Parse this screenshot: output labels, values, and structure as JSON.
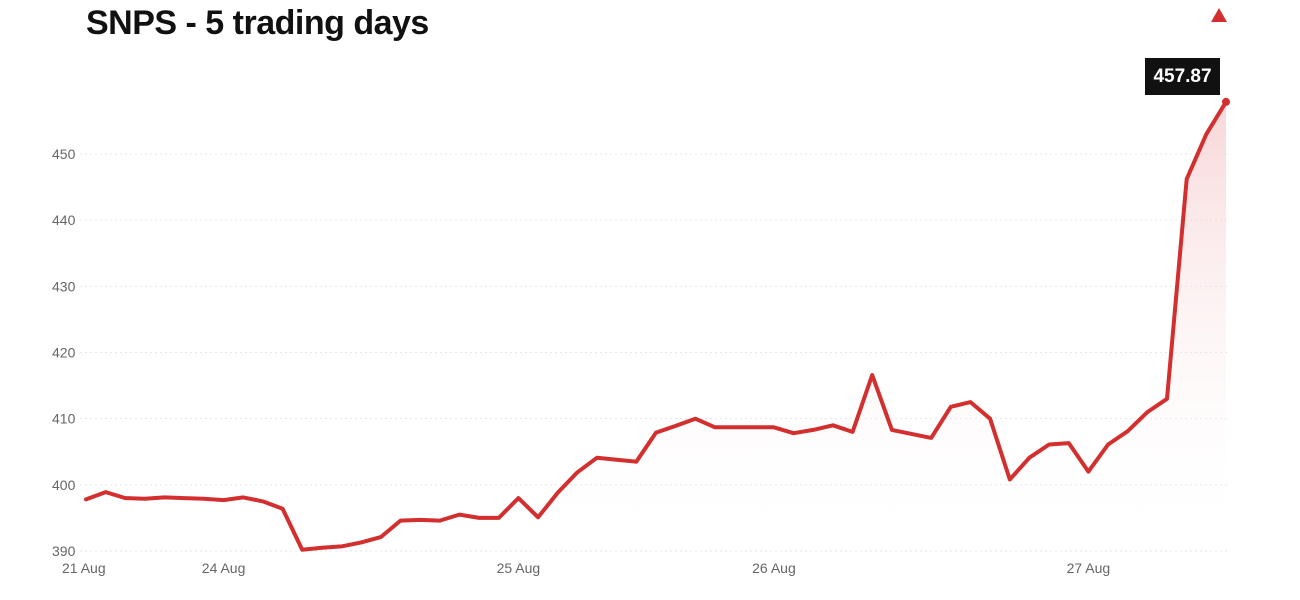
{
  "title": "SNPS - 5 trading days",
  "trend_indicator": "up-triangle-icon",
  "last_value_label": "457.87",
  "colors": {
    "line": "#d32f2f",
    "fill_top": "#f5c9cb",
    "grid": "#e6e6e6",
    "badge": "#111111"
  },
  "chart_data": {
    "type": "area",
    "title": "SNPS - 5 trading days",
    "xlabel": "",
    "ylabel": "",
    "ylim": [
      390,
      460
    ],
    "yticks": [
      390,
      400,
      410,
      420,
      430,
      440,
      450
    ],
    "xtick_labels": [
      "21 Aug",
      "24 Aug",
      "25 Aug",
      "26 Aug",
      "27 Aug"
    ],
    "xtick_index": [
      0,
      7,
      22,
      35,
      51
    ],
    "grid": true,
    "last_value": 457.87,
    "series": [
      {
        "values": [
          397.8,
          398.9,
          398.0,
          397.9,
          398.1,
          398.0,
          397.9,
          397.7,
          398.1,
          397.5,
          396.4,
          390.2,
          390.5,
          390.7,
          391.3,
          392.1,
          394.6,
          394.7,
          394.6,
          395.5,
          395.0,
          395.0,
          398.0,
          395.1,
          398.8,
          401.9,
          404.1,
          403.8,
          403.5,
          407.9,
          408.9,
          410.0,
          408.7,
          408.7,
          408.7,
          408.7,
          407.8,
          408.3,
          409.0,
          408.0,
          416.6,
          408.3,
          407.7,
          407.1,
          411.8,
          412.5,
          410.0,
          400.8,
          404.1,
          406.1,
          406.3,
          402.0,
          406.1,
          408.1,
          411.0,
          413.0,
          446.2,
          453.0,
          457.87
        ]
      }
    ]
  }
}
